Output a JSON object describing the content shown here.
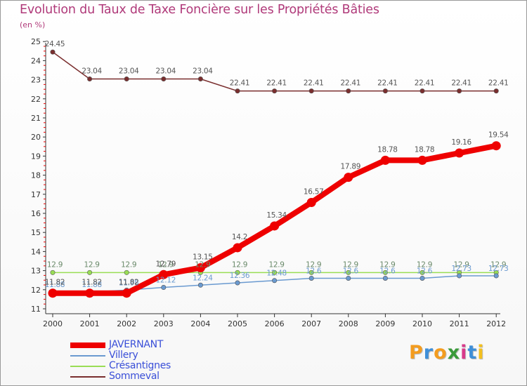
{
  "chart_data": {
    "type": "line",
    "title": "Evolution du Taux de Taxe Foncière sur les Propriétés Bâties",
    "subtitle": "(en %)",
    "xlabel": "",
    "ylabel": "",
    "ylim": [
      11,
      25
    ],
    "yticks": [
      11,
      12,
      13,
      14,
      15,
      16,
      17,
      18,
      19,
      20,
      21,
      22,
      23,
      24,
      25
    ],
    "categories": [
      "2000",
      "2001",
      "2002",
      "2003",
      "2004",
      "2005",
      "2006",
      "2007",
      "2008",
      "2009",
      "2010",
      "2011",
      "2012"
    ],
    "grid": false,
    "legend_position": "bottom-left",
    "series": [
      {
        "name": "JAVERNANT",
        "color": "#ee0000",
        "values": [
          11.82,
          11.82,
          11.82,
          12.79,
          13.15,
          14.2,
          15.34,
          16.57,
          17.89,
          18.78,
          18.78,
          19.16,
          19.54
        ],
        "labels": [
          "11.82",
          "11.82",
          "11.82",
          "12.79",
          "13.15",
          "14.2",
          "15.34",
          "16.57",
          "17.89",
          "18.78",
          "18.78",
          "19.16",
          "19.54"
        ]
      },
      {
        "name": "Villery",
        "color": "#6a9ad0",
        "values": [
          11.88,
          11.88,
          11.98,
          12.12,
          12.24,
          12.36,
          12.48,
          12.6,
          12.6,
          12.6,
          12.6,
          12.73,
          12.73
        ],
        "labels": [
          "11.88",
          "11.88",
          "11.98",
          "12.12",
          "12.24",
          "12.36",
          "12.48",
          "12.6",
          "12.6",
          "12.6",
          "12.6",
          "12.73",
          "12.73"
        ]
      },
      {
        "name": "Crésantignes",
        "color": "#99dd55",
        "values": [
          12.9,
          12.9,
          12.9,
          12.9,
          12.9,
          12.9,
          12.9,
          12.9,
          12.9,
          12.9,
          12.9,
          12.9,
          12.9
        ],
        "labels": [
          "12.9",
          "12.9",
          "12.9",
          "12.9",
          "12.9",
          "12.9",
          "12.9",
          "12.9",
          "12.9",
          "12.9",
          "12.9",
          "12.9",
          "12.9"
        ]
      },
      {
        "name": "Sommeval",
        "color": "#7a2e2e",
        "values": [
          24.45,
          23.04,
          23.04,
          23.04,
          23.04,
          22.41,
          22.41,
          22.41,
          22.41,
          22.41,
          22.41,
          22.41,
          22.41
        ],
        "labels": [
          "24.45",
          "23.04",
          "23.04",
          "23.04",
          "23.04",
          "22.41",
          "22.41",
          "22.41",
          "22.41",
          "22.41",
          "22.41",
          "22.41",
          "22.41"
        ]
      }
    ]
  },
  "legend": {
    "items": [
      "JAVERNANT",
      "Villery",
      "Crésantignes",
      "Sommeval"
    ]
  },
  "brand": {
    "letters": [
      "P",
      "r",
      "o",
      "x",
      "i",
      "t",
      "i"
    ],
    "colors": [
      "#f39c1f",
      "#3f8fd8",
      "#f39c1f",
      "#3a9a3a",
      "#d83a8a",
      "#3f8fd8",
      "#f3c01f"
    ]
  }
}
